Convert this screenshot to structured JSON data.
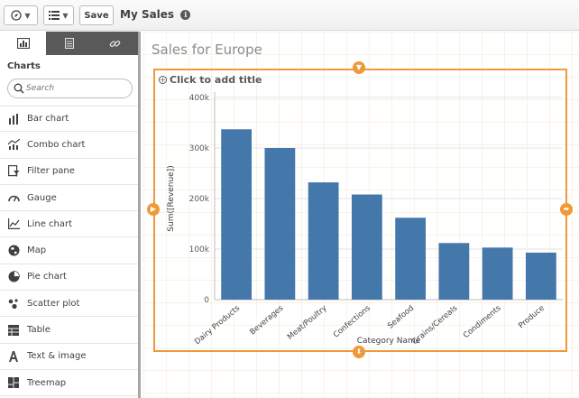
{
  "toolbar": {
    "nav_icon": "compass-icon",
    "list_icon": "list-icon",
    "save_label": "Save",
    "app_title": "My Sales",
    "info_icon": "i"
  },
  "left_panel": {
    "tabs": [
      {
        "icon": "chart-icon",
        "active": true
      },
      {
        "icon": "field-list-icon",
        "active": false
      },
      {
        "icon": "link-icon",
        "active": false
      }
    ],
    "heading": "Charts",
    "search_placeholder": "Search",
    "items": [
      {
        "label": "Bar chart",
        "icon": "bar-chart-icon"
      },
      {
        "label": "Combo chart",
        "icon": "combo-chart-icon"
      },
      {
        "label": "Filter pane",
        "icon": "filter-pane-icon"
      },
      {
        "label": "Gauge",
        "icon": "gauge-icon"
      },
      {
        "label": "Line chart",
        "icon": "line-chart-icon"
      },
      {
        "label": "Map",
        "icon": "map-icon"
      },
      {
        "label": "Pie chart",
        "icon": "pie-chart-icon"
      },
      {
        "label": "Scatter plot",
        "icon": "scatter-plot-icon"
      },
      {
        "label": "Table",
        "icon": "table-icon"
      },
      {
        "label": "Text & image",
        "icon": "text-image-icon"
      },
      {
        "label": "Treemap",
        "icon": "treemap-icon"
      }
    ]
  },
  "main": {
    "sheet_title": "Sales for Europe",
    "chart_title_placeholder": "Click to add title"
  },
  "colors": {
    "accent": "#f09938",
    "bar": "#4477aa",
    "panel_tabs": "#595959"
  },
  "chart_data": {
    "type": "bar",
    "title": "",
    "xlabel": "Category Name",
    "ylabel": "Sum([Revenue])",
    "categories": [
      "Dairy Products",
      "Beverages",
      "Meat/Poultry",
      "Confections",
      "Seafood",
      "Grains/Cereals",
      "Condiments",
      "Produce"
    ],
    "values": [
      337000,
      300000,
      232000,
      208000,
      162000,
      112000,
      103000,
      93000
    ],
    "ylim": [
      0,
      400000
    ],
    "yticks": [
      0,
      100000,
      200000,
      300000,
      400000
    ],
    "ytick_labels": [
      "0",
      "100k",
      "200k",
      "300k",
      "400k"
    ],
    "grid": true,
    "legend": "none"
  }
}
